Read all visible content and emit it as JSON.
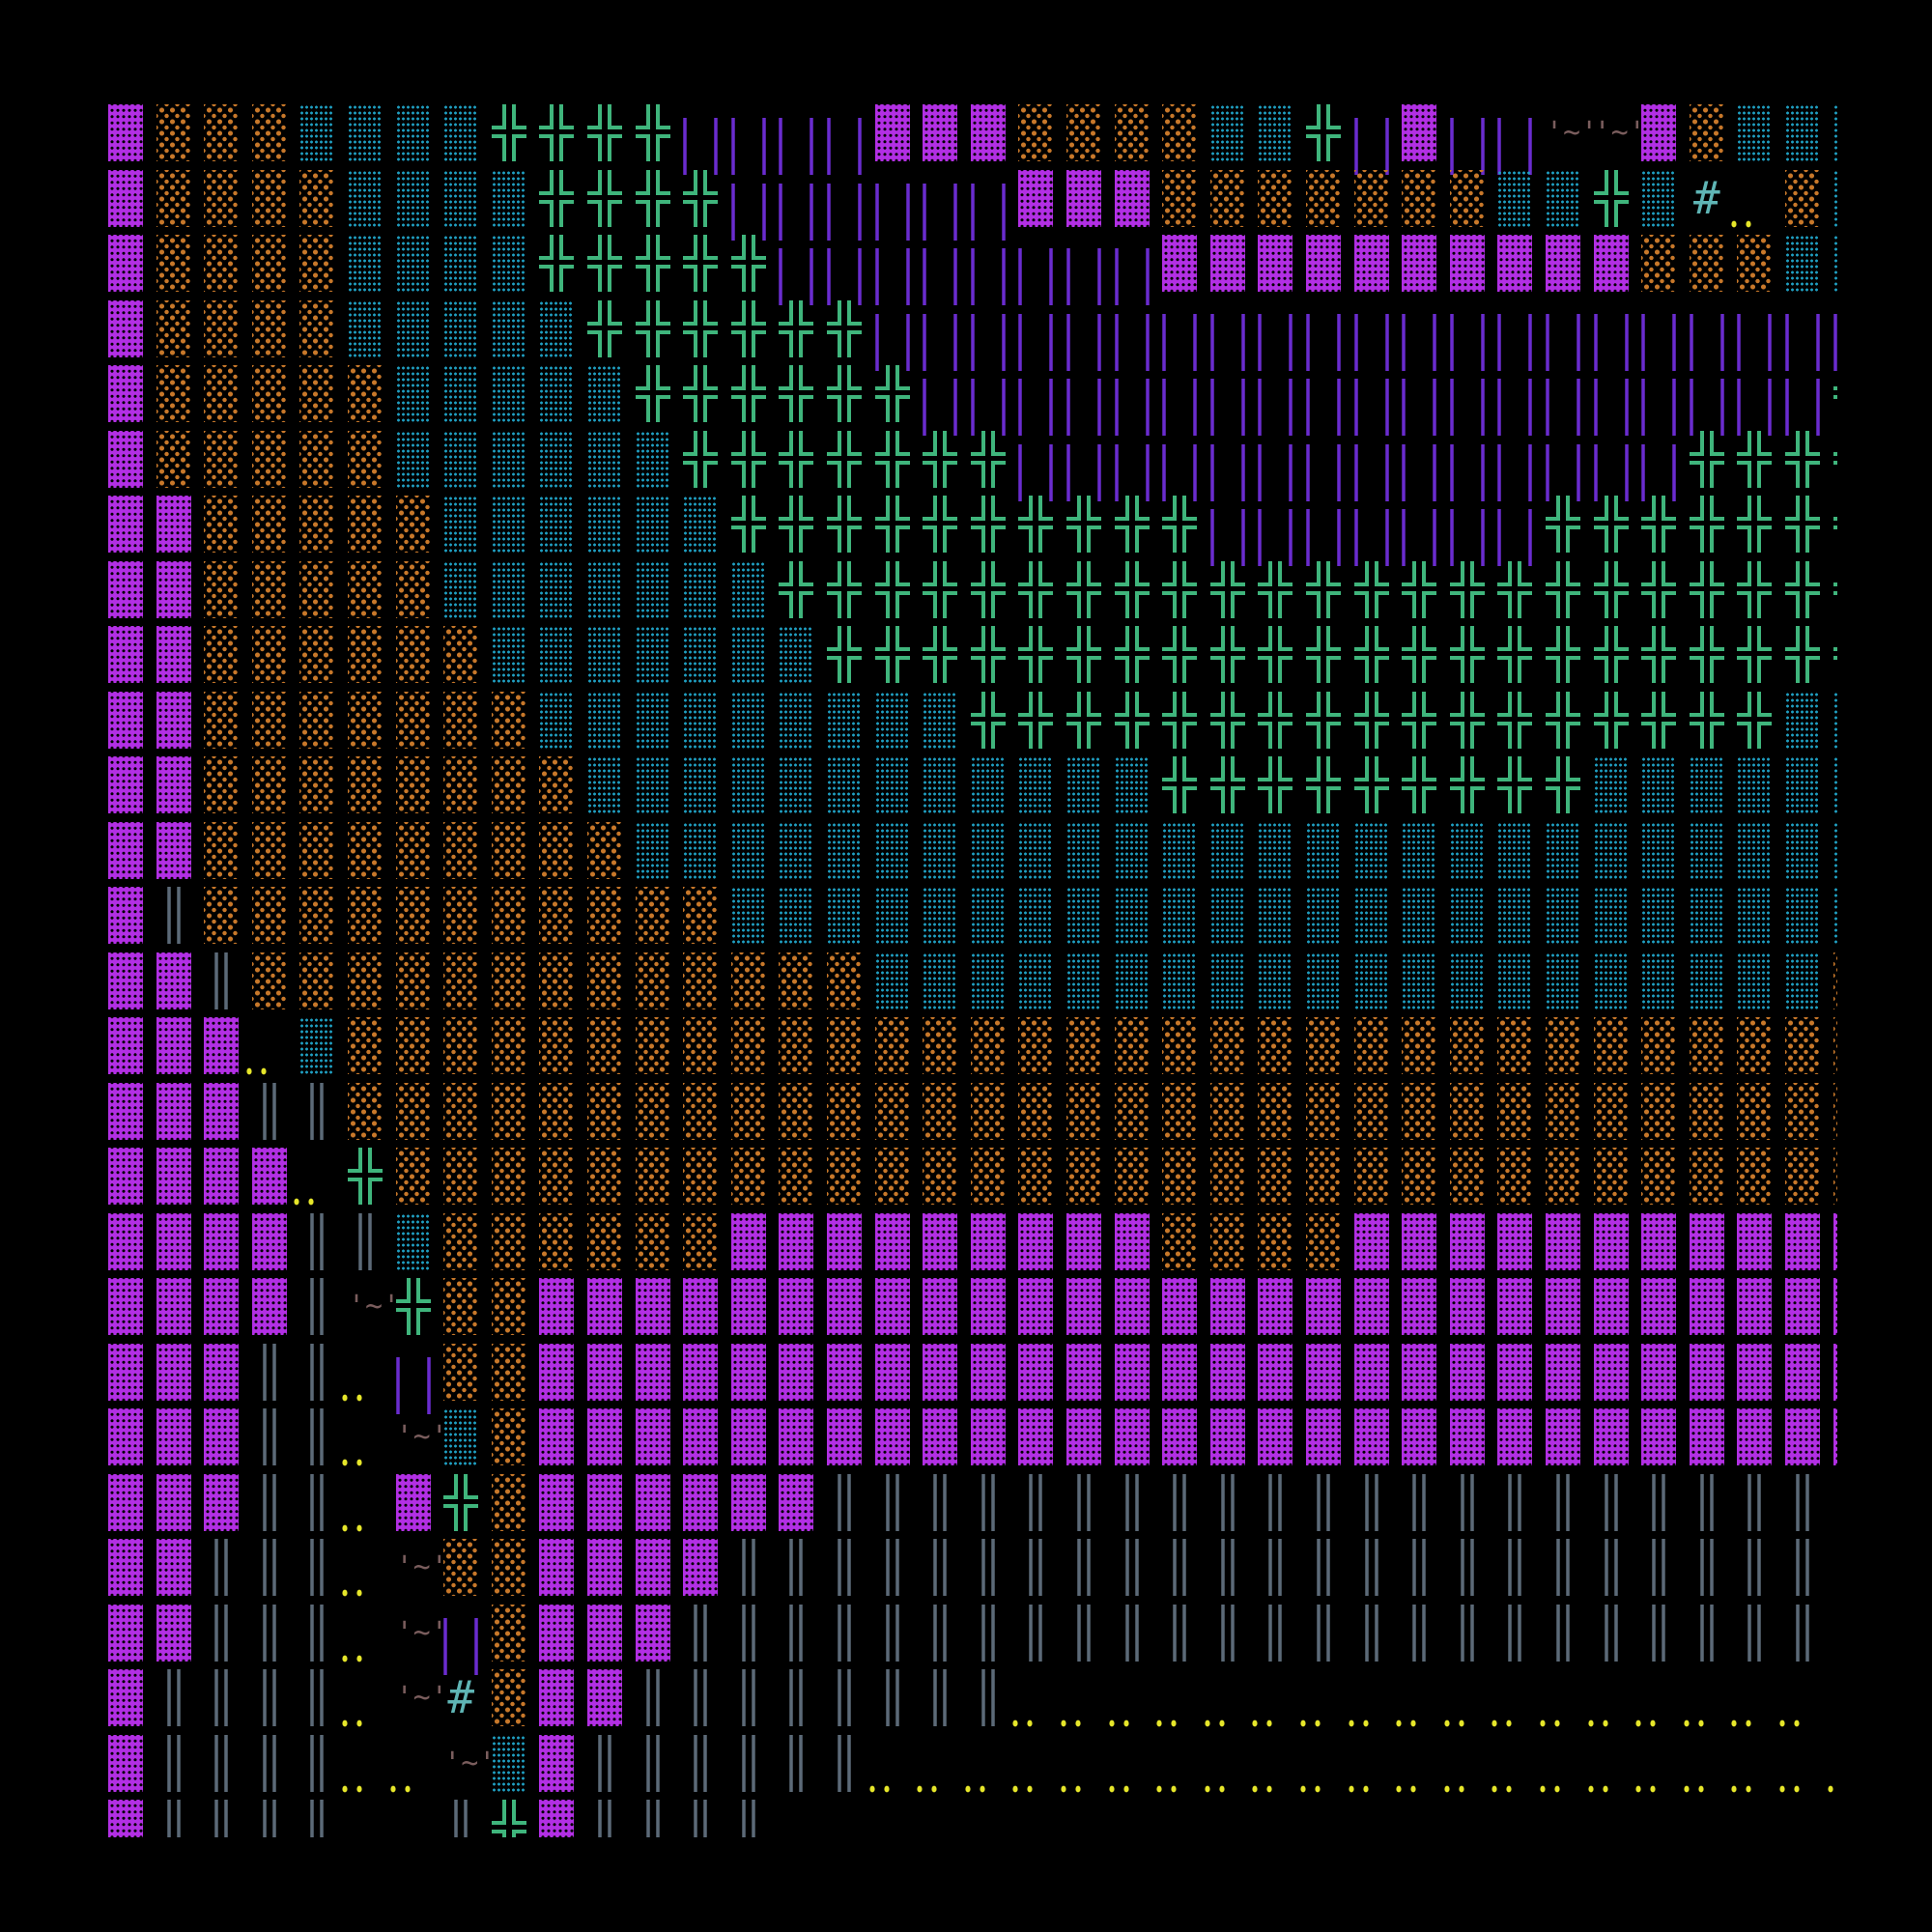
{
  "legend": {
    "M": {
      "name": "dense-shade-tile",
      "glyph": "▓",
      "color": "#b22fe4"
    },
    "O": {
      "name": "light-shade-tile",
      "glyph": "░",
      "color": "#c8782a"
    },
    "C": {
      "name": "medium-shade-tile",
      "glyph": "▒",
      "color": "#1f9fc2"
    },
    "G": {
      "name": "cross-tile",
      "glyph": "╬",
      "color": "#3fb57c"
    },
    "P": {
      "name": "purple-double-bar-tile",
      "glyph": "║",
      "color": "#6a2ccf"
    },
    "S": {
      "name": "slate-double-bar-tile",
      "glyph": "║",
      "color": "#5c6a78"
    },
    "T": {
      "name": "tilde-tile",
      "glyph": "'~'",
      "color": "#7a5d5d"
    },
    "H": {
      "name": "hash-tile",
      "glyph": "#",
      "color": "#5fb5b5"
    },
    "Y": {
      "name": "dots-tile",
      "glyph": "‥",
      "color": "#e6e62a"
    }
  },
  "rows": [
    "MOOOCCCCGGGGPPPPMMMOOOOCCGPMPPTTMOCCC",
    "MOOOOCCCCGGGGPPPPPPMMMOOOOOOOCCGCHYOC",
    "MOOOOCCCCGGGGGPPPPPPPPMMMMMMMMMMOOOCC",
    "MOOOOCCCCCGGGGGGPPPPPPPPPPPPPPPPPPPPP",
    "MOOOOOCCCCCGGGGGGPPPPPPPPPPPPPPPPPPPG",
    "MOOOOOCCCCCCGGGGGGGPPPPPPPPPPPPPPGGGG",
    "MMOOOOOCCCCCCGGGGGGGGGGPPPPPPPGGGGGGG",
    "MMOOOOOCCCCCCCGGGGGGGGGGGGGGGGGGGGGGG",
    "MMOOOOOOCCCCCCCGGGGGGGGGGGGGGGGGGGGGG",
    "MMOOOOOOOCCCCCCCCCGGGGGGGGGGGGGGGGGCC",
    "MMOOOOOOOOCCCCCCCCCCCCGGGGGGGGGCCCCCC",
    "MMOOOOOOOOOCCCCCCCCCCCCCCCCCCCCCCCCCC",
    "MSOOOOOOOOOOOCCCCCCCCCCCCCCCCCCCCCCCC",
    "MMSOOOOOOOOOOOOOCCCCCCCCCCCCCCCCCCCCO",
    "MMMYCOOOOOOOOOOOOOOOOOOOOOOOOOOOOOOOO",
    "MMMSSOOOOOOOOOOOOOOOOOOOOOOOOOOOOOOOO",
    "MMMMYGOOOOOOOOOOOOOOOOOOOOOOOOOOOOOOO",
    "MMMMSSCOOOOOOMMMMMMMMMOOOOMMMMMMMMMMM",
    "MMMMSTGOOMMMMMMMMMMMMMMMMMMMMMMMMMMMM",
    "MMMSSYPOOMMMMMMMMMMMMMMMMMMMMMMMMMMMM",
    "MMMSSYTCOMMMMMMMMMMMMMMMMMMMMMMMMMMMM",
    "MMMSSYMGOMMMMMMSSSSSSSSSSSSSSSSSSSSS ",
    "MMSSSYTOOMMMMSSSSSSSSSSSSSSSSSSSSSSS ",
    "MMSSSYTPOMMMSSSSSSSSSSSSSSSSSSSSSSSS ",
    "MSSSSYTHOMMSSSSSSSSYYYYYYYYYYYYYYYYY ",
    "MSSSSYYTCMSSSSSSYYYYYYYYYYYYYYYYYYYYY",
    "MSSSS  SGMSSSS                       "
  ]
}
